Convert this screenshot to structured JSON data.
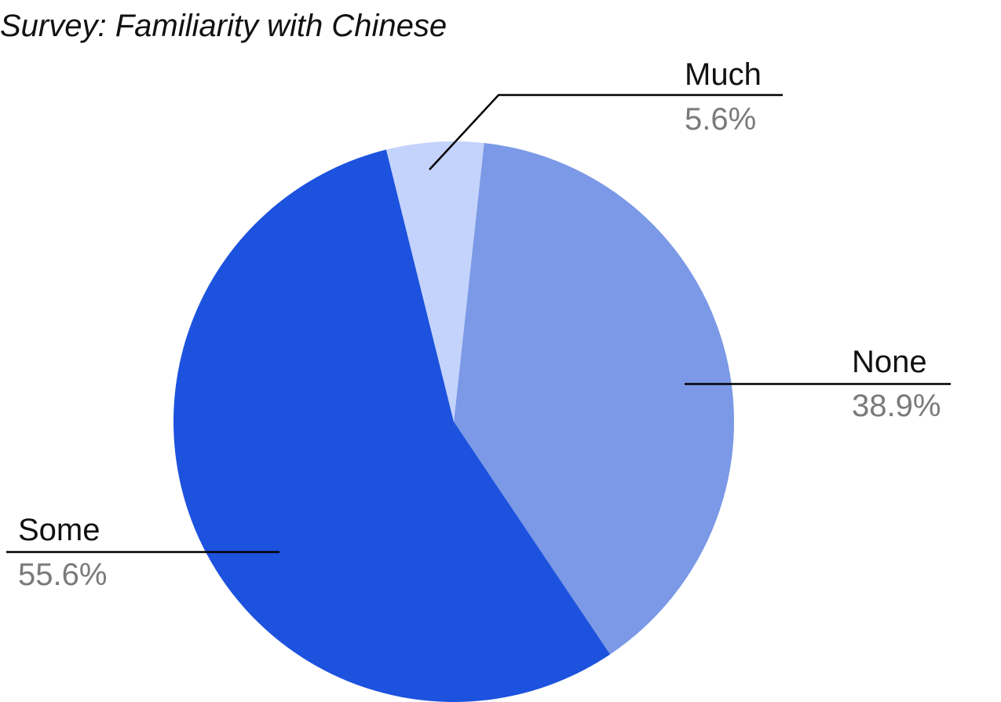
{
  "chart_data": {
    "type": "pie",
    "title": "Survey: Familiarity with Chinese",
    "slices": [
      {
        "label": "None",
        "value": 38.9,
        "value_label": "38.9%",
        "color": "#7b99e6"
      },
      {
        "label": "Some",
        "value": 55.6,
        "value_label": "55.6%",
        "color": "#1c52de"
      },
      {
        "label": "Much",
        "value": 5.6,
        "value_label": "5.6%",
        "color": "#c4d3fc"
      }
    ],
    "start_angle": "top, clockwise from just right of 12 o'clock",
    "legend": "none (direct labels with leader lines)"
  }
}
